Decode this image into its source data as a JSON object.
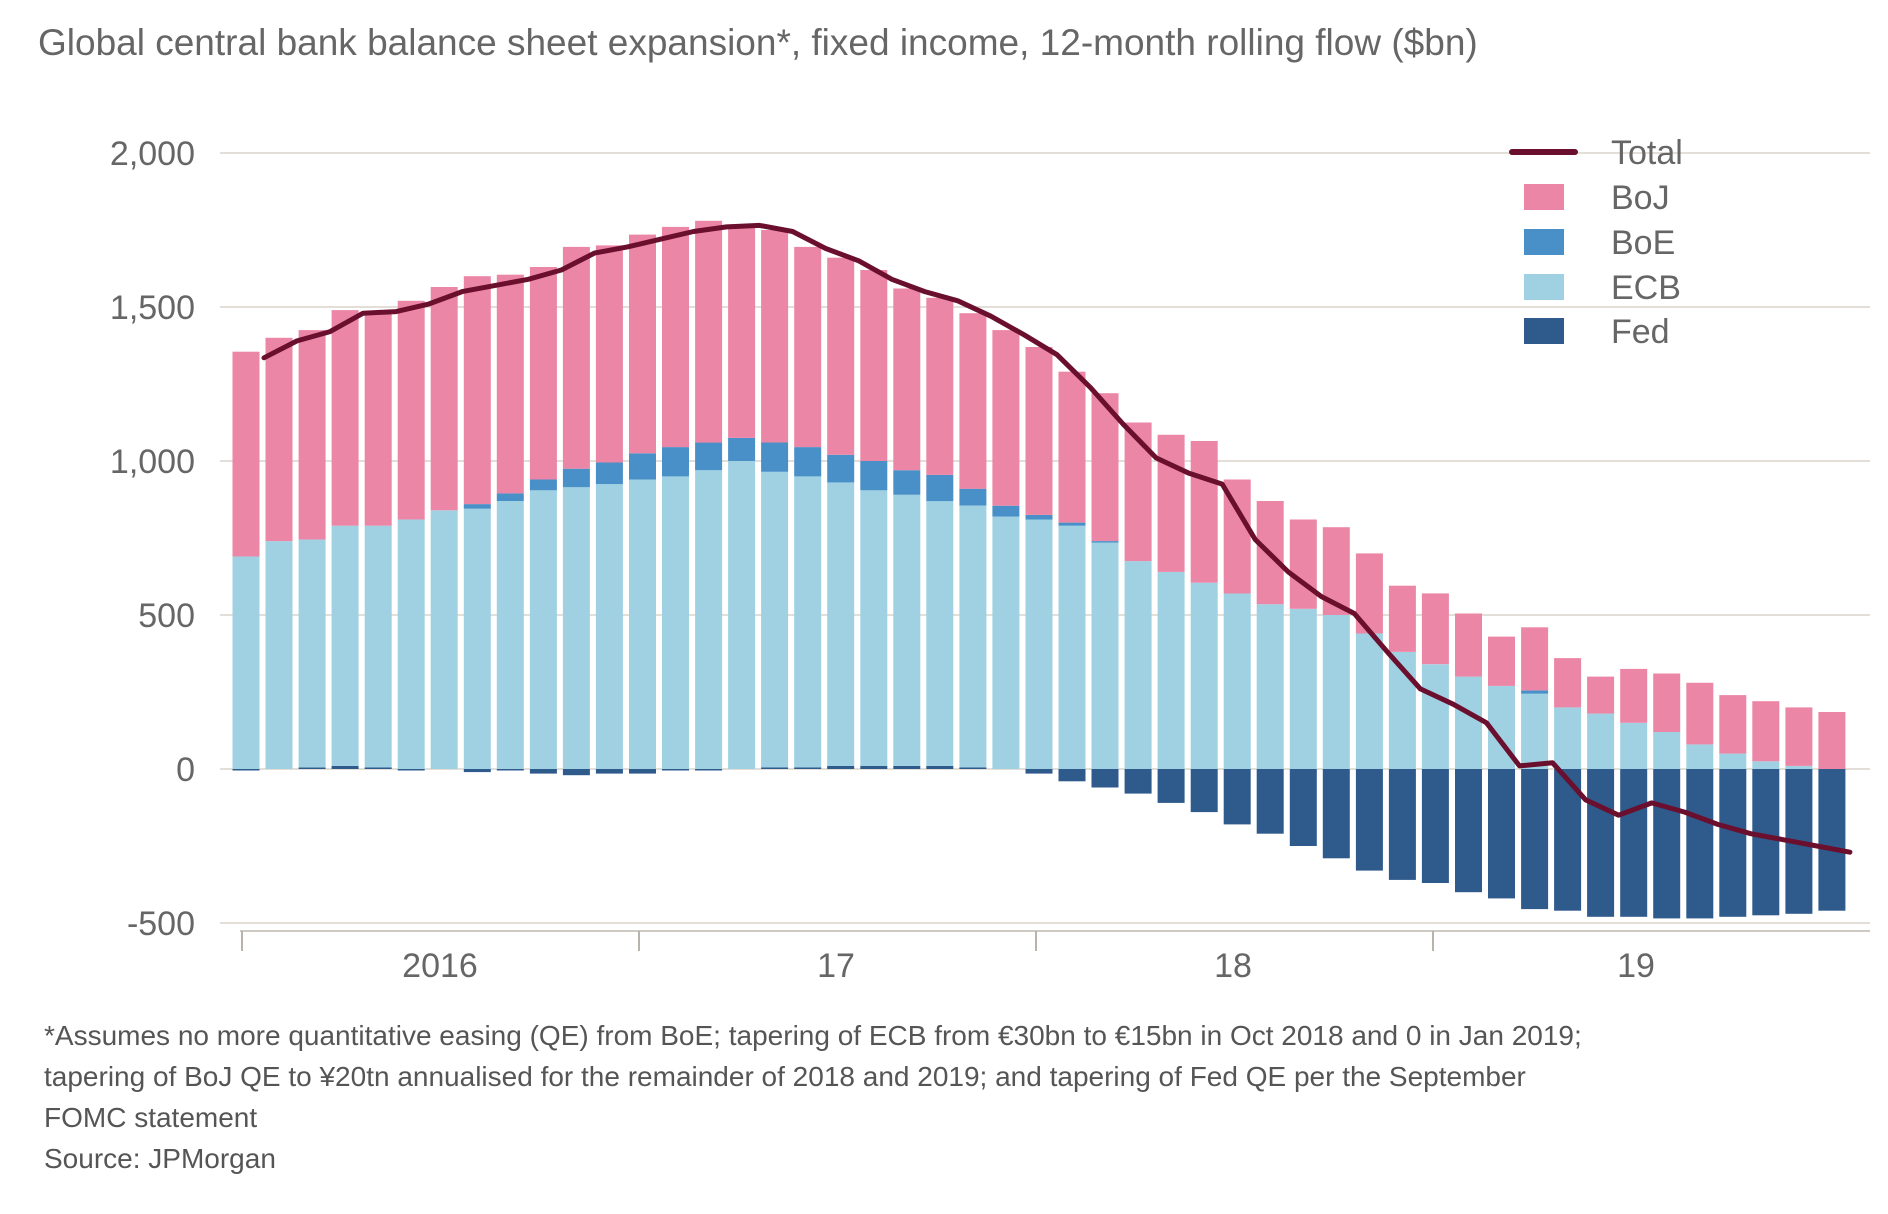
{
  "chart_data": {
    "type": "bar",
    "stacked": true,
    "title": "Global central bank balance sheet expansion*, fixed income, 12-month rolling flow ($bn)",
    "xlabel": "",
    "ylabel": "",
    "ylim": [
      -500,
      2000
    ],
    "yticks": [
      2000,
      1500,
      1000,
      500,
      0,
      -500
    ],
    "ytick_labels": [
      "2,000",
      "1,500",
      "1,000",
      "500",
      "0",
      "-500"
    ],
    "xtick_labels": [
      "2016",
      "17",
      "18",
      "19"
    ],
    "grid": true,
    "legend_position": "top-right",
    "series": [
      {
        "name": "Fed",
        "kind": "bar",
        "color": "#2f5a8c",
        "values": [
          -5,
          0,
          5,
          10,
          5,
          -5,
          0,
          -10,
          -5,
          -15,
          -20,
          -15,
          -15,
          -5,
          -5,
          0,
          5,
          5,
          10,
          10,
          10,
          10,
          5,
          0,
          -15,
          -40,
          -60,
          -80,
          -110,
          -140,
          -180,
          -210,
          -250,
          -290,
          -330,
          -360,
          -370,
          -400,
          -420,
          -455,
          -460,
          -480,
          -480,
          -485,
          -485,
          -480,
          -475,
          -470,
          -460
        ]
      },
      {
        "name": "ECB",
        "kind": "bar",
        "color": "#9fd1e3",
        "values": [
          690,
          740,
          740,
          780,
          785,
          810,
          840,
          845,
          870,
          905,
          915,
          925,
          940,
          950,
          970,
          1000,
          960,
          945,
          920,
          895,
          880,
          860,
          850,
          820,
          810,
          790,
          735,
          675,
          640,
          605,
          570,
          535,
          520,
          500,
          440,
          380,
          340,
          300,
          270,
          245,
          200,
          180,
          150,
          120,
          80,
          50,
          25,
          10,
          0
        ]
      },
      {
        "name": "BoE",
        "kind": "bar",
        "color": "#4a90c8",
        "values": [
          0,
          0,
          0,
          0,
          0,
          0,
          0,
          15,
          25,
          35,
          60,
          70,
          85,
          95,
          90,
          75,
          95,
          95,
          90,
          95,
          80,
          85,
          55,
          35,
          15,
          10,
          5,
          0,
          0,
          0,
          0,
          0,
          0,
          0,
          0,
          0,
          0,
          0,
          0,
          10,
          0,
          0,
          0,
          0,
          0,
          0,
          0,
          0,
          0
        ]
      },
      {
        "name": "BoJ",
        "kind": "bar",
        "color": "#ec86a6",
        "values": [
          665,
          660,
          680,
          700,
          690,
          710,
          725,
          740,
          710,
          690,
          720,
          705,
          710,
          715,
          720,
          690,
          690,
          650,
          640,
          620,
          590,
          575,
          570,
          570,
          545,
          490,
          480,
          450,
          445,
          460,
          370,
          335,
          290,
          285,
          260,
          215,
          230,
          205,
          160,
          205,
          160,
          120,
          175,
          190,
          200,
          190,
          195,
          190,
          185
        ]
      },
      {
        "name": "Total",
        "kind": "line",
        "color": "#6b0f2e",
        "values": [
          1335,
          1390,
          1420,
          1480,
          1485,
          1510,
          1550,
          1570,
          1590,
          1620,
          1675,
          1695,
          1720,
          1745,
          1760,
          1765,
          1745,
          1690,
          1650,
          1590,
          1550,
          1520,
          1470,
          1410,
          1345,
          1240,
          1120,
          1010,
          960,
          925,
          745,
          640,
          560,
          505,
          380,
          260,
          210,
          150,
          10,
          20,
          -100,
          -150,
          -110,
          -140,
          -180,
          -210,
          -230,
          -250,
          -270
        ]
      }
    ],
    "footnote": [
      "*Assumes no more quantitative easing (QE) from BoE; tapering of ECB from €30bn to €15bn in Oct 2018 and 0 in Jan 2019;",
      "tapering of BoJ QE to ¥20tn annualised for the remainder of 2018 and 2019; and tapering of Fed QE per the September",
      "FOMC statement",
      "Source: JPMorgan"
    ],
    "legend": [
      "Total",
      "BoJ",
      "BoE",
      "ECB",
      "Fed"
    ]
  }
}
